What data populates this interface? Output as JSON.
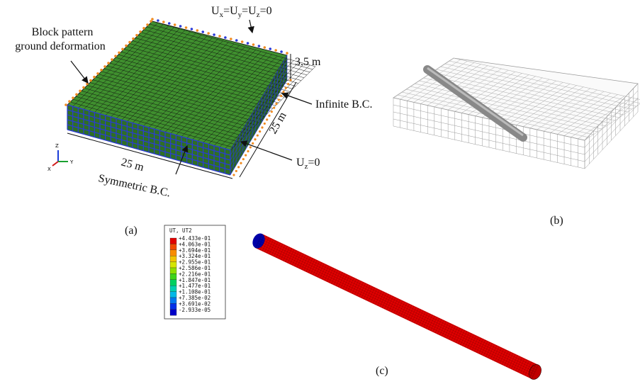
{
  "panel_a": {
    "label": "(a)",
    "annotation_block": [
      "Block pattern",
      "ground deformation"
    ],
    "annotation_top_bc": [
      "U",
      "x",
      "=U",
      "y",
      "=U",
      "z",
      "=0"
    ],
    "thickness": "3.5 m",
    "infinite_bc": "Infinite B.C.",
    "width_right": "25 m",
    "width_front": "25 m",
    "symmetric_bc": "Symmetric B.C.",
    "bottom_bc": [
      "U",
      "z",
      "=0"
    ],
    "axes": [
      "Z",
      "X",
      "Y"
    ]
  },
  "panel_b": {
    "label": "(b)"
  },
  "panel_c": {
    "label": "(c)",
    "legend_title": "UT, UT2",
    "legend": [
      {
        "label": "+4.433e-01",
        "color": "#e00000"
      },
      {
        "label": "+4.063e-01",
        "color": "#f04a00"
      },
      {
        "label": "+3.694e-01",
        "color": "#f88c00"
      },
      {
        "label": "+3.324e-01",
        "color": "#f2c400"
      },
      {
        "label": "+2.955e-01",
        "color": "#d6e600"
      },
      {
        "label": "+2.586e-01",
        "color": "#8ee000"
      },
      {
        "label": "+2.216e-01",
        "color": "#3fd41a"
      },
      {
        "label": "+1.847e-01",
        "color": "#00d060"
      },
      {
        "label": "+1.477e-01",
        "color": "#00d0b0"
      },
      {
        "label": "+1.108e-01",
        "color": "#00b8e8"
      },
      {
        "label": "+7.385e-02",
        "color": "#0078f0"
      },
      {
        "label": "+3.691e-02",
        "color": "#0030e8"
      },
      {
        "label": "-2.933e-05",
        "color": "#0000c8"
      }
    ]
  }
}
